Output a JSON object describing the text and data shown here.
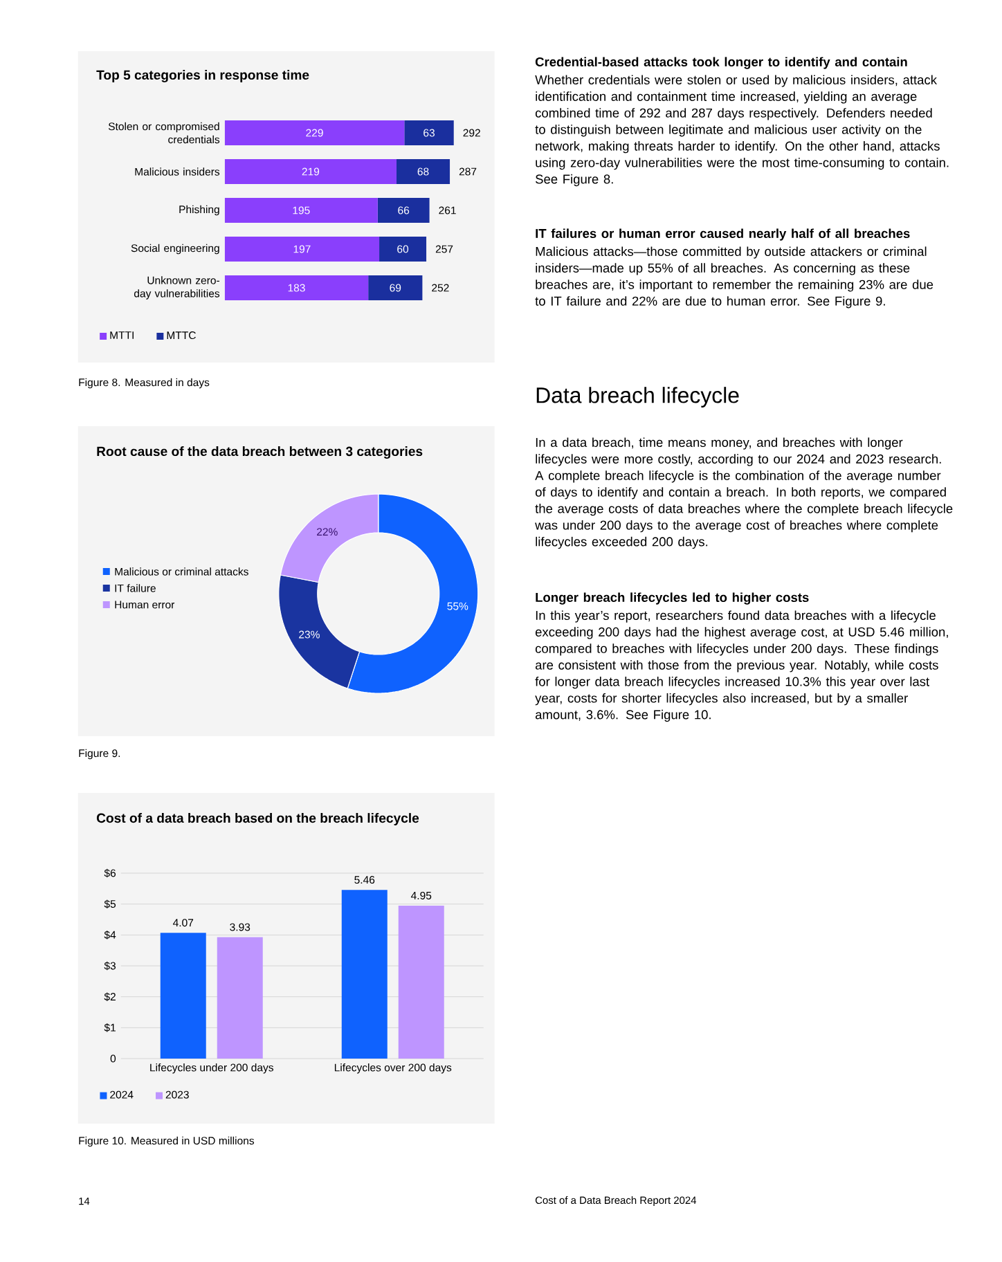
{
  "chart_data": [
    {
      "type": "bar",
      "orientation": "horizontal",
      "stacked": true,
      "title": "Top 5 categories in response time",
      "categories": [
        "Stolen or compromised credentials",
        "Malicious insiders",
        "Phishing",
        "Social engineering",
        "Unknown zero-day vulnerabilities"
      ],
      "series": [
        {
          "name": "MTTI",
          "color": "#8a3ffc",
          "values": [
            229,
            219,
            195,
            197,
            183
          ]
        },
        {
          "name": "MTTC",
          "color": "#1a2f9e",
          "values": [
            63,
            68,
            66,
            60,
            69
          ]
        }
      ],
      "totals": [
        "292",
        "287",
        "261",
        "257",
        "252"
      ],
      "data_labels": true,
      "legend": "bottom left",
      "annotations": [
        "Figure 8. Measured in days"
      ]
    },
    {
      "type": "donut",
      "title": "Root cause of the data breach between 3 categories",
      "categories": [
        "Malicious or criminal attacks",
        "IT failure",
        "Human error"
      ],
      "values": [
        55,
        23,
        22
      ],
      "colors": [
        "#0f62fe",
        "#1a34a0",
        "#be95ff"
      ],
      "value_labels": [
        "55%",
        "23%",
        "22%"
      ],
      "legend": "left",
      "annotations": [
        "Figure 9."
      ]
    },
    {
      "type": "bar",
      "title": "Cost of a data breach based on the breach lifecycle",
      "categories": [
        "Lifecycles under 200 days",
        "Lifecycles over 200 days"
      ],
      "series": [
        {
          "name": "2024",
          "color": "#0f62fe",
          "values": [
            4.07,
            5.46
          ]
        },
        {
          "name": "2023",
          "color": "#be95ff",
          "values": [
            3.93,
            4.95
          ]
        }
      ],
      "ylim": [
        0,
        6
      ],
      "yticks": [
        0,
        {
          "value": 1,
          "label": "$1"
        },
        {
          "value": 2,
          "label": "$2"
        },
        {
          "value": 3,
          "label": "$3"
        },
        {
          "value": 4,
          "label": "$4"
        },
        {
          "value": 5,
          "label": "$5"
        },
        {
          "value": 6,
          "label": "$6"
        }
      ],
      "grid": "y",
      "data_labels": true,
      "legend": "bottom left",
      "annotations": [
        "Figure 10. Measured in USD millions"
      ]
    },
    {
      "type": "other",
      "title": "Data breach lifecycle",
      "annotations": [
        "Credential-based attacks took longer to identify and contain",
        "Whether credentials were stolen or used by malicious insiders, attack identification and containment time increased, yielding an average combined time of 292 and 287 days respectively. Defenders needed to distinguish between legitimate and malicious user activity on the network, making threats harder to identify. On the other hand, attacks using zero-day vulnerabilities were the most time-consuming to contain. See Figure 8.",
        "IT failures or human error caused nearly half of all breaches",
        "Malicious attacks—those committed by outside attackers or criminal insiders—made up 55% of all breaches. As concerning as these breaches are, it’s important to remember the remaining 23% are due to IT failure and 22% are due to human error.  See Figure 9.",
        "In a data breach, time means money, and breaches with longer lifecycles were more costly, according to our 2024 and 2023 research. A complete breach lifecycle is the combination of the average number of days to identify and contain a breach. In both reports, we compared the average costs of data breaches where the complete breach lifecycle was under 200 days to the average cost of breaches where complete lifecycles exceeded 200 days.",
        "Longer breach lifecycles led to higher costs",
        "In this year’s report, researchers found data breaches with a lifecycle exceeding 200 days had the highest average cost, at USD 5.46 million, compared to breaches with lifecycles under 200 days. These findings are consistent with those from the previous year. Notably, while costs for longer data breach lifecycles increased 10.3% this year over last year, costs for shorter lifecycles also increased, but by a smaller amount, 3.6%. See Figure 10.",
        "14",
        "Cost of a Data Breach Report 2024"
      ]
    }
  ]
}
